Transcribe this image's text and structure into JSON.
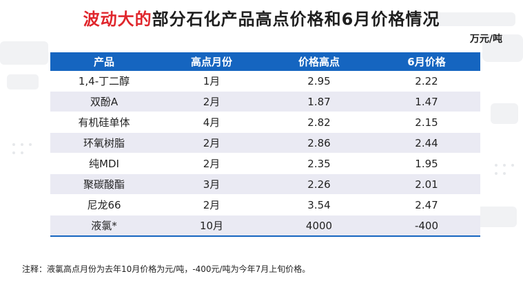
{
  "title": {
    "highlight": "波动大的",
    "rest": "部分石化产品高点价格和6月价格情况"
  },
  "unit": "万元/吨",
  "table": {
    "headers": [
      "产品",
      "高点月份",
      "价格高点",
      "6月价格"
    ],
    "rows": [
      [
        "1,4-丁二醇",
        "1月",
        "2.95",
        "2.22"
      ],
      [
        "双酚A",
        "2月",
        "1.87",
        "1.47"
      ],
      [
        "有机硅单体",
        "4月",
        "2.82",
        "2.15"
      ],
      [
        "环氧树脂",
        "2月",
        "2.86",
        "2.44"
      ],
      [
        "纯MDI",
        "2月",
        "2.35",
        "1.95"
      ],
      [
        "聚碳酸酯",
        "3月",
        "2.26",
        "2.01"
      ],
      [
        "尼龙66",
        "2月",
        "3.54",
        "2.47"
      ],
      [
        "液氯*",
        "10月",
        "4000",
        "-400"
      ]
    ]
  },
  "note": "注释：液氯高点月份为去年10月价格为元/吨，-400元/吨为今年7月上旬价格。",
  "colors": {
    "header_bg": "#1565c0",
    "title_highlight": "#e0262c",
    "stripe": "#eaeaf3"
  }
}
